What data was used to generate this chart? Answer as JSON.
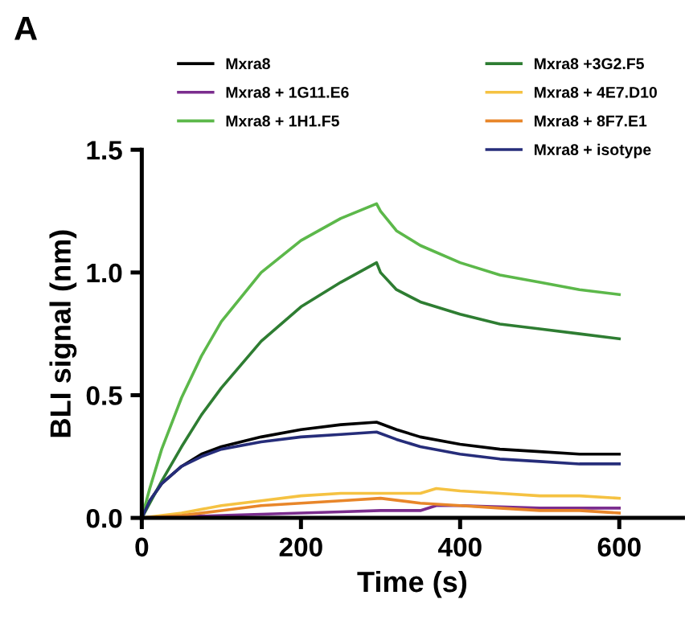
{
  "chart_data": {
    "type": "line",
    "title": "A",
    "xlabel": "Time (s)",
    "ylabel": "BLI signal (nm)",
    "xlim": [
      0,
      680
    ],
    "ylim": [
      0,
      1.5
    ],
    "xticks": [
      0,
      200,
      400,
      600
    ],
    "yticks": [
      {
        "value": 0,
        "label": "0.0"
      },
      {
        "value": 0.5,
        "label": "0.5"
      },
      {
        "value": 1.0,
        "label": "1.0"
      },
      {
        "value": 1.5,
        "label": "1.5"
      }
    ],
    "grid": false,
    "legend": "top",
    "marker": "none",
    "line_style": "solid",
    "series": [
      {
        "name": "Mxra8",
        "color": "#000000",
        "x": [
          0,
          10,
          25,
          50,
          75,
          100,
          150,
          200,
          250,
          295,
          320,
          350,
          400,
          450,
          500,
          550,
          600
        ],
        "values": [
          0,
          0.07,
          0.14,
          0.21,
          0.26,
          0.29,
          0.33,
          0.36,
          0.38,
          0.39,
          0.36,
          0.33,
          0.3,
          0.28,
          0.27,
          0.26,
          0.26
        ]
      },
      {
        "name": "Mxra8 + 1G11.E6",
        "color": "#7b2d8e",
        "x": [
          0,
          50,
          100,
          150,
          200,
          250,
          300,
          350,
          370,
          400,
          450,
          500,
          550,
          600
        ],
        "values": [
          0,
          0.005,
          0.01,
          0.015,
          0.02,
          0.025,
          0.03,
          0.03,
          0.05,
          0.05,
          0.045,
          0.04,
          0.04,
          0.04
        ]
      },
      {
        "name": "Mxra8 + 1H1.F5",
        "color": "#5cb84a",
        "x": [
          0,
          10,
          25,
          50,
          75,
          100,
          150,
          200,
          250,
          295,
          300,
          320,
          350,
          400,
          450,
          500,
          550,
          600
        ],
        "values": [
          0,
          0.12,
          0.28,
          0.49,
          0.66,
          0.8,
          1.0,
          1.13,
          1.22,
          1.28,
          1.25,
          1.17,
          1.11,
          1.04,
          0.99,
          0.96,
          0.93,
          0.91
        ]
      },
      {
        "name": "Mxra8 +3G2.F5",
        "color": "#2e7d32",
        "x": [
          0,
          25,
          50,
          75,
          100,
          150,
          200,
          250,
          295,
          300,
          320,
          350,
          400,
          450,
          500,
          550,
          600
        ],
        "values": [
          0,
          0.15,
          0.29,
          0.42,
          0.53,
          0.72,
          0.86,
          0.96,
          1.04,
          1.0,
          0.93,
          0.88,
          0.83,
          0.79,
          0.77,
          0.75,
          0.73
        ]
      },
      {
        "name": "Mxra8 + 4E7.D10",
        "color": "#f5c242",
        "x": [
          0,
          50,
          100,
          150,
          200,
          250,
          300,
          350,
          370,
          400,
          450,
          500,
          550,
          600
        ],
        "values": [
          0,
          0.02,
          0.05,
          0.07,
          0.09,
          0.1,
          0.1,
          0.1,
          0.12,
          0.11,
          0.1,
          0.09,
          0.09,
          0.08
        ]
      },
      {
        "name": "Mxra8 + 8F7.E1",
        "color": "#e8862a",
        "x": [
          0,
          50,
          100,
          150,
          200,
          250,
          300,
          350,
          400,
          450,
          500,
          550,
          600
        ],
        "values": [
          0,
          0.01,
          0.03,
          0.05,
          0.06,
          0.07,
          0.08,
          0.06,
          0.05,
          0.04,
          0.03,
          0.03,
          0.02
        ]
      },
      {
        "name": "Mxra8 + isotype",
        "color": "#262d7a",
        "x": [
          0,
          10,
          25,
          50,
          75,
          100,
          150,
          200,
          250,
          295,
          320,
          350,
          400,
          450,
          500,
          550,
          600
        ],
        "values": [
          0,
          0.07,
          0.14,
          0.21,
          0.25,
          0.28,
          0.31,
          0.33,
          0.34,
          0.35,
          0.32,
          0.29,
          0.26,
          0.24,
          0.23,
          0.22,
          0.22
        ]
      }
    ]
  }
}
